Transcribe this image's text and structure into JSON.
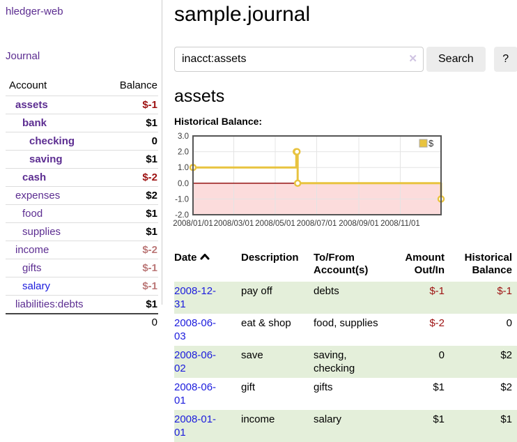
{
  "app": {
    "brand": "hledger-web",
    "nav_journal": "Journal"
  },
  "colors": {
    "link_purple": "#5c2d91",
    "link_blue": "#1b1bdd",
    "negative_strong": "#9d1111",
    "negative_muted": "#bb7777",
    "row_stripe_green": "#e4efda",
    "button_bg": "#ececec",
    "divider_gray": "#cccccc"
  },
  "sidebar": {
    "table": {
      "col_account": "Account",
      "col_balance": "Balance",
      "rows": [
        {
          "account": "assets",
          "balance": "$-1",
          "depth": 1,
          "selected": true
        },
        {
          "account": "bank",
          "balance": "$1",
          "depth": 2,
          "selected": true
        },
        {
          "account": "checking",
          "balance": "0",
          "depth": 3,
          "selected": true
        },
        {
          "account": "saving",
          "balance": "$1",
          "depth": 3,
          "selected": true
        },
        {
          "account": "cash",
          "balance": "$-2",
          "depth": 2,
          "selected": true
        },
        {
          "account": "expenses",
          "balance": "$2",
          "depth": 1
        },
        {
          "account": "food",
          "balance": "$1",
          "depth": 2
        },
        {
          "account": "supplies",
          "balance": "$1",
          "depth": 2
        },
        {
          "account": "income",
          "balance": "$-2",
          "depth": 1
        },
        {
          "account": "gifts",
          "balance": "$-1",
          "depth": 2
        },
        {
          "account": "salary",
          "balance": "$-1",
          "depth": 2,
          "unvisited": true
        },
        {
          "account": "liabilities:debts",
          "balance": "$1",
          "depth": 1
        }
      ],
      "total": "0"
    }
  },
  "header": {
    "title": "sample.journal"
  },
  "search": {
    "value": "inacct:assets",
    "clear_icon": "✕",
    "button": "Search",
    "help_button": "?"
  },
  "account_page": {
    "title": "assets",
    "chart_label": "Historical Balance:"
  },
  "chart_data": {
    "type": "line",
    "step": true,
    "title": "Historical Balance:",
    "xlabel": "",
    "ylabel": "",
    "ylim": [
      -2.0,
      3.0
    ],
    "y_ticks": [
      "3.0",
      "2.0",
      "1.0",
      "0.0",
      "-1.0",
      "-2.0"
    ],
    "x_min": "2008-01-01",
    "x_max": "2008-12-31",
    "x_ticks": [
      "2008/01/01",
      "2008/03/01",
      "2008/05/01",
      "2008/07/01",
      "2008/09/01",
      "2008/11/01"
    ],
    "grid": true,
    "legend": {
      "position": "top-right",
      "label": "$"
    },
    "series": [
      {
        "name": "$",
        "color": "#e8c33f",
        "points": [
          [
            "2008-01-01",
            1.0
          ],
          [
            "2008-06-01",
            2.0
          ],
          [
            "2008-06-02",
            2.0
          ],
          [
            "2008-06-03",
            0.0
          ],
          [
            "2008-12-31",
            -1.0
          ]
        ]
      }
    ],
    "negative_region_fill": "#fcdcdc",
    "zero_line_color": "#8b0000",
    "grid_color": "#e4e4e4",
    "border_color": "#555555"
  },
  "register": {
    "columns": {
      "date": "Date",
      "description": "Description",
      "accounts": "To/From Account(s)",
      "amount": "Amount Out/In",
      "balance": "Historical Balance"
    },
    "sort": {
      "column": "date",
      "direction": "asc",
      "icon": "chevron-up"
    },
    "rows": [
      {
        "date": "2008-12-31",
        "description": "pay off",
        "accounts": "debts",
        "amount": "$-1",
        "balance": "$-1"
      },
      {
        "date": "2008-06-03",
        "description": "eat & shop",
        "accounts": "food, supplies",
        "amount": "$-2",
        "balance": "0"
      },
      {
        "date": "2008-06-02",
        "description": "save",
        "accounts": "saving, checking",
        "amount": "0",
        "balance": "$2"
      },
      {
        "date": "2008-06-01",
        "description": "gift",
        "accounts": "gifts",
        "amount": "$1",
        "balance": "$2"
      },
      {
        "date": "2008-01-01",
        "description": "income",
        "accounts": "salary",
        "amount": "$1",
        "balance": "$1"
      }
    ]
  }
}
